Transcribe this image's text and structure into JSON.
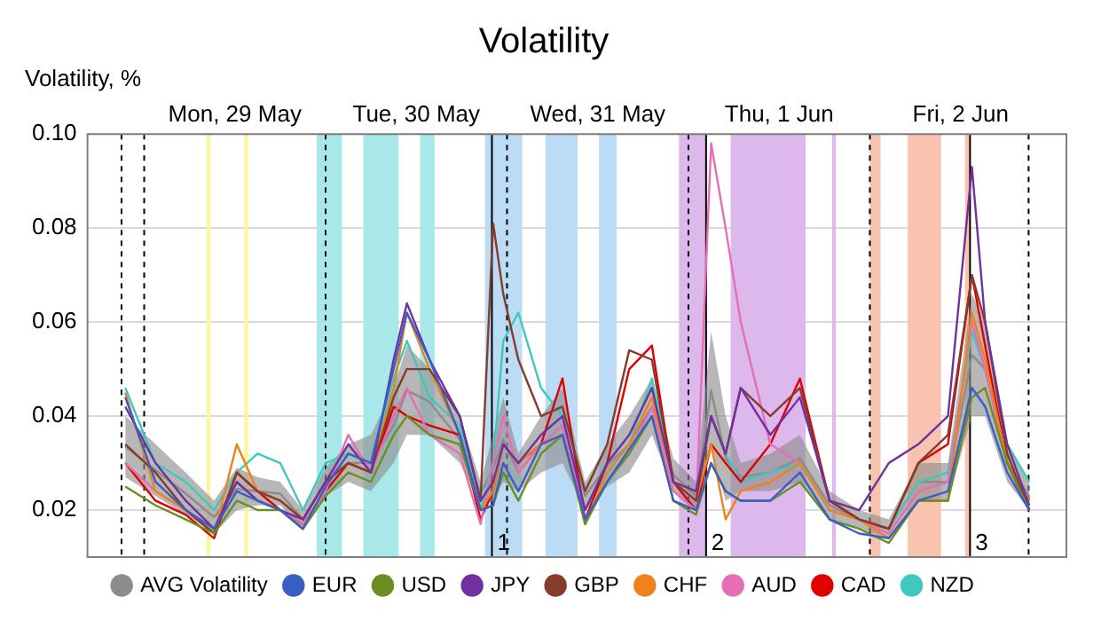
{
  "chart_data": {
    "type": "line",
    "title": "Volatility",
    "ylabel": "Volatility, %",
    "x": [
      "--05-28T09:30",
      "--05-28T13:30",
      "--05-28T17:30",
      "--05-28T21:15",
      "--05-29T00:15",
      "--05-29T03:00",
      "--05-29T06:00",
      "--05-29T09:00",
      "--05-29T12:00",
      "--05-29T15:00",
      "--05-29T18:00",
      "--05-29T21:00",
      "--05-29T22:45",
      "--05-30T01:45",
      "--05-30T05:45",
      "--05-30T08:30",
      "--05-30T10:10",
      "--05-30T11:30",
      "--05-30T13:30",
      "--05-30T16:30",
      "--05-30T19:20",
      "--05-30T22:20",
      "--05-31T01:15",
      "--05-31T04:10",
      "--05-31T07:10",
      "--05-31T10:00",
      "--05-31T13:00",
      "--05-31T15:00",
      "--05-31T16:55",
      "--05-31T18:55",
      "--05-31T22:50",
      "--06-01T02:45",
      "--06-01T06:40",
      "--06-01T10:35",
      "--06-01T14:30",
      "--06-01T18:25",
      "--06-01T22:20",
      "--06-02T01:30",
      "--06-02T03:15",
      "--06-02T06:10",
      "--06-02T09:05"
    ],
    "xlim": [
      "--05-28T04:30",
      "--06-02T14:00"
    ],
    "xticks": [
      {
        "value": "--05-29",
        "label": "Mon, 29 May"
      },
      {
        "value": "--05-30",
        "label": "Tue, 30 May"
      },
      {
        "value": "--05-31",
        "label": "Wed, 31 May"
      },
      {
        "value": "--06-01",
        "label": "Thu, 1 Jun"
      },
      {
        "value": "--06-02",
        "label": "Fri, 2 Jun"
      }
    ],
    "ylim": [
      0.01,
      0.1
    ],
    "yticks": [
      0.02,
      0.04,
      0.06,
      0.08,
      {
        "value": 0.1,
        "label": "0.10"
      }
    ],
    "grid": "y",
    "legend": "bottom",
    "series": [
      {
        "name": "AVG Volatility",
        "color": "#8c8c8c",
        "values": [
          0.0335,
          0.0285,
          0.0235,
          0.0185,
          0.0245,
          0.024,
          0.0235,
          0.018,
          0.026,
          0.03,
          0.03,
          0.038,
          0.0455,
          0.043,
          0.035,
          0.0235,
          0.029,
          0.035,
          0.028,
          0.034,
          0.038,
          0.023,
          0.0295,
          0.034,
          0.042,
          0.0275,
          0.023,
          0.0455,
          0.031,
          0.027,
          0.028,
          0.031,
          0.021,
          0.018,
          0.016,
          0.026,
          0.026,
          0.053,
          0.05,
          0.03,
          0.023
        ],
        "lower": [
          0.027,
          0.023,
          0.019,
          0.015,
          0.02,
          0.021,
          0.021,
          0.016,
          0.023,
          0.026,
          0.024,
          0.03,
          0.036,
          0.036,
          0.03,
          0.021,
          0.022,
          0.026,
          0.024,
          0.028,
          0.03,
          0.02,
          0.025,
          0.028,
          0.036,
          0.024,
          0.02,
          0.033,
          0.022,
          0.024,
          0.024,
          0.026,
          0.018,
          0.016,
          0.014,
          0.022,
          0.022,
          0.04,
          0.04,
          0.026,
          0.02
        ],
        "upper": [
          0.04,
          0.034,
          0.028,
          0.022,
          0.029,
          0.027,
          0.026,
          0.02,
          0.029,
          0.034,
          0.036,
          0.046,
          0.055,
          0.05,
          0.04,
          0.026,
          0.036,
          0.044,
          0.032,
          0.04,
          0.046,
          0.026,
          0.034,
          0.04,
          0.048,
          0.031,
          0.026,
          0.058,
          0.04,
          0.03,
          0.032,
          0.036,
          0.024,
          0.02,
          0.018,
          0.03,
          0.03,
          0.066,
          0.06,
          0.034,
          0.026
        ]
      },
      {
        "name": "EUR",
        "color": "#3a5fc4",
        "values": [
          0.044,
          0.026,
          0.02,
          0.016,
          0.024,
          0.022,
          0.02,
          0.016,
          0.025,
          0.032,
          0.03,
          0.05,
          0.062,
          0.052,
          0.036,
          0.02,
          0.021,
          0.03,
          0.024,
          0.034,
          0.036,
          0.018,
          0.026,
          0.033,
          0.04,
          0.022,
          0.02,
          0.03,
          0.024,
          0.022,
          0.022,
          0.028,
          0.018,
          0.015,
          0.014,
          0.022,
          0.024,
          0.046,
          0.042,
          0.028,
          0.02
        ]
      },
      {
        "name": "USD",
        "color": "#6a8e23",
        "values": [
          0.025,
          0.021,
          0.018,
          0.015,
          0.022,
          0.02,
          0.02,
          0.016,
          0.023,
          0.028,
          0.026,
          0.036,
          0.04,
          0.036,
          0.034,
          0.02,
          0.021,
          0.028,
          0.022,
          0.032,
          0.036,
          0.017,
          0.026,
          0.032,
          0.04,
          0.022,
          0.019,
          0.03,
          0.024,
          0.022,
          0.022,
          0.026,
          0.018,
          0.016,
          0.013,
          0.022,
          0.022,
          0.044,
          0.046,
          0.03,
          0.02
        ]
      },
      {
        "name": "JPY",
        "color": "#7030a0",
        "values": [
          0.042,
          0.03,
          0.022,
          0.016,
          0.026,
          0.022,
          0.02,
          0.018,
          0.026,
          0.034,
          0.028,
          0.052,
          0.064,
          0.052,
          0.04,
          0.022,
          0.026,
          0.034,
          0.03,
          0.036,
          0.04,
          0.02,
          0.03,
          0.036,
          0.046,
          0.026,
          0.024,
          0.04,
          0.032,
          0.046,
          0.036,
          0.044,
          0.022,
          0.02,
          0.03,
          0.034,
          0.04,
          0.093,
          0.06,
          0.034,
          0.021
        ]
      },
      {
        "name": "GBP",
        "color": "#843c2c",
        "values": [
          0.034,
          0.028,
          0.02,
          0.015,
          0.028,
          0.024,
          0.022,
          0.018,
          0.026,
          0.03,
          0.028,
          0.044,
          0.05,
          0.05,
          0.04,
          0.022,
          0.081,
          0.066,
          0.052,
          0.04,
          0.042,
          0.024,
          0.034,
          0.054,
          0.052,
          0.026,
          0.022,
          0.04,
          0.032,
          0.046,
          0.04,
          0.046,
          0.022,
          0.018,
          0.016,
          0.03,
          0.036,
          0.07,
          0.06,
          0.032,
          0.02
        ]
      },
      {
        "name": "CHF",
        "color": "#f0821e",
        "values": [
          0.045,
          0.024,
          0.02,
          0.015,
          0.034,
          0.024,
          0.022,
          0.018,
          0.026,
          0.03,
          0.028,
          0.046,
          0.062,
          0.05,
          0.036,
          0.02,
          0.024,
          0.034,
          0.03,
          0.034,
          0.036,
          0.017,
          0.028,
          0.034,
          0.044,
          0.026,
          0.022,
          0.034,
          0.018,
          0.024,
          0.026,
          0.03,
          0.02,
          0.018,
          0.014,
          0.022,
          0.022,
          0.062,
          0.052,
          0.03,
          0.022
        ]
      },
      {
        "name": "AUD",
        "color": "#e66eb4",
        "values": [
          0.03,
          0.024,
          0.02,
          0.016,
          0.026,
          0.022,
          0.02,
          0.017,
          0.024,
          0.036,
          0.028,
          0.04,
          0.046,
          0.036,
          0.032,
          0.017,
          0.03,
          0.04,
          0.028,
          0.034,
          0.038,
          0.018,
          0.026,
          0.032,
          0.042,
          0.024,
          0.02,
          0.098,
          0.08,
          0.06,
          0.034,
          0.03,
          0.02,
          0.018,
          0.015,
          0.024,
          0.026,
          0.06,
          0.05,
          0.03,
          0.021
        ]
      },
      {
        "name": "CAD",
        "color": "#e00000",
        "values": [
          0.03,
          0.022,
          0.019,
          0.014,
          0.028,
          0.024,
          0.02,
          0.017,
          0.024,
          0.03,
          0.028,
          0.042,
          0.04,
          0.038,
          0.036,
          0.018,
          0.024,
          0.034,
          0.03,
          0.034,
          0.048,
          0.018,
          0.03,
          0.05,
          0.055,
          0.026,
          0.02,
          0.034,
          0.03,
          0.026,
          0.034,
          0.048,
          0.022,
          0.018,
          0.016,
          0.03,
          0.034,
          0.07,
          0.055,
          0.03,
          0.02
        ]
      },
      {
        "name": "NZD",
        "color": "#40c8c0",
        "values": [
          0.046,
          0.03,
          0.026,
          0.02,
          0.028,
          0.032,
          0.03,
          0.02,
          0.03,
          0.032,
          0.03,
          0.048,
          0.056,
          0.044,
          0.038,
          0.02,
          0.03,
          0.056,
          0.062,
          0.046,
          0.04,
          0.02,
          0.028,
          0.034,
          0.048,
          0.026,
          0.022,
          0.04,
          0.032,
          0.026,
          0.028,
          0.03,
          0.02,
          0.018,
          0.016,
          0.026,
          0.028,
          0.058,
          0.05,
          0.034,
          0.026
        ]
      }
    ],
    "bands": [
      {
        "axis": "x",
        "from": "--05-28T20:15",
        "to": "--05-28T20:45",
        "color": "#fff59a"
      },
      {
        "axis": "x",
        "from": "--05-29T01:15",
        "to": "--05-29T01:45",
        "color": "#fff59a"
      },
      {
        "axis": "x",
        "from": "--05-29T10:50",
        "to": "--05-29T14:10",
        "color": "#a8e8e8"
      },
      {
        "axis": "x",
        "from": "--05-29T17:00",
        "to": "--05-29T21:40",
        "color": "#a8e8e8"
      },
      {
        "axis": "x",
        "from": "--05-30T00:30",
        "to": "--05-30T02:25",
        "color": "#a8e8e8"
      },
      {
        "axis": "x",
        "from": "--05-30T09:05",
        "to": "--05-30T14:00",
        "color": "#bcdcf5"
      },
      {
        "axis": "x",
        "from": "--05-30T17:05",
        "to": "--05-30T21:20",
        "color": "#bcdcf5"
      },
      {
        "axis": "x",
        "from": "--05-31T00:10",
        "to": "--05-31T02:30",
        "color": "#bcdcf5"
      },
      {
        "axis": "x",
        "from": "--05-31T10:45",
        "to": "--05-31T14:20",
        "color": "#dcb8ec"
      },
      {
        "axis": "x",
        "from": "--05-31T17:35",
        "to": "--06-01T03:30",
        "color": "#dcb8ec"
      },
      {
        "axis": "x",
        "from": "--06-01T07:00",
        "to": "--06-01T07:30",
        "color": "#dcb8ec"
      },
      {
        "axis": "x",
        "from": "--06-01T12:00",
        "to": "--06-01T13:25",
        "color": "#f8c4b0"
      },
      {
        "axis": "x",
        "from": "--06-01T17:00",
        "to": "--06-01T21:25",
        "color": "#f8c4b0"
      },
      {
        "axis": "x",
        "from": "--06-02T00:35",
        "to": "--06-02T01:15",
        "color": "#f8c4b0"
      }
    ],
    "ref_lines": [
      {
        "axis": "x",
        "value": "--05-28T09:00",
        "line_style": "dashed",
        "color": "#000000"
      },
      {
        "axis": "x",
        "value": "--05-28T12:00",
        "line_style": "dashed",
        "color": "#000000"
      },
      {
        "axis": "x",
        "value": "--05-29T12:00",
        "line_style": "dashed",
        "color": "#000000"
      },
      {
        "axis": "x",
        "value": "--05-30T12:00",
        "line_style": "dashed",
        "color": "#000000"
      },
      {
        "axis": "x",
        "value": "--05-31T12:00",
        "line_style": "dashed",
        "color": "#000000"
      },
      {
        "axis": "x",
        "value": "--06-01T12:00",
        "line_style": "dashed",
        "color": "#000000"
      },
      {
        "axis": "x",
        "value": "--06-02T09:00",
        "line_style": "dashed",
        "color": "#000000"
      },
      {
        "axis": "x",
        "value": "--05-30T10:00",
        "line_style": "solid",
        "color": "#000000"
      },
      {
        "axis": "x",
        "value": "--05-31T14:20",
        "line_style": "solid",
        "color": "#000000"
      },
      {
        "axis": "x",
        "value": "--06-02T01:15",
        "line_style": "solid",
        "color": "#000000"
      }
    ],
    "annotations": [
      "1",
      "2",
      "3"
    ]
  }
}
